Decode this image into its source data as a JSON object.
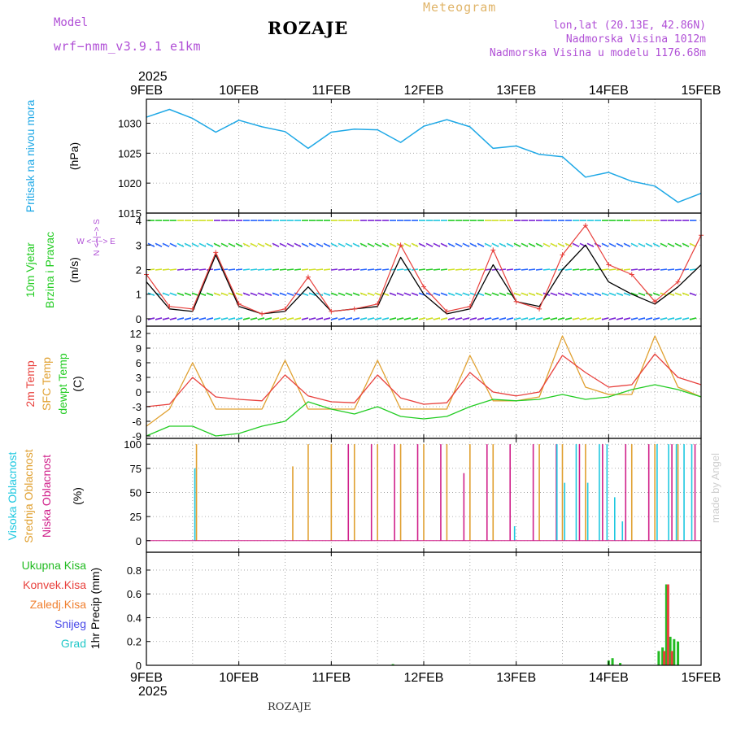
{
  "header": {
    "model_label": "Model",
    "model_name": "wrf−nmm_v3.9.1  e1km",
    "station": "ROZAJE",
    "product": "Meteogram",
    "coords": "lon,lat (20.13E, 42.86N)",
    "elevation": "Nadmorska Visina 1012m",
    "model_elevation": "Nadmorska Visina u modelu 1176.68m",
    "footer_station": "ROZAJE",
    "credit": "made by Angel"
  },
  "time_axis": {
    "year_top": "2025",
    "year_bottom": "2025",
    "ticks": [
      "9FEB",
      "10FEB",
      "11FEB",
      "12FEB",
      "13FEB",
      "14FEB",
      "15FEB"
    ]
  },
  "panels": {
    "pressure": {
      "label": "Pritisak na nivou mora",
      "unit": "(hPa)"
    },
    "wind": {
      "label1": "10m Vjetar",
      "label2": "Brzina i Pravac",
      "unit": "(m/s)",
      "compass": "W <−|−> E",
      "compass_n": "N <−|−> S"
    },
    "temp": {
      "label1": "2m Temp",
      "label2": "SFC Temp",
      "label3": "dewpt Temp",
      "unit": "(C)"
    },
    "cloud": {
      "label1": "Visoka Oblacnost",
      "label2": "Srednja Oblacnost",
      "label3": "Niska Oblacnost",
      "unit": "(%)"
    },
    "precip": {
      "labels": [
        "Ukupna Kisa",
        "Konvek.Kisa",
        "Zaledj.Kisa",
        "Snijeg",
        "Grad"
      ],
      "unit": "1hr Precip (mm)"
    }
  },
  "colors": {
    "pressure": "#1ea8e6",
    "wind_black": "#000000",
    "gust": "#e8403c",
    "t2m": "#e8403c",
    "sfc": "#e0a030",
    "dew": "#22cc22",
    "high": "#1ec8e0",
    "mid": "#e0a030",
    "low": "#d0208a",
    "total": "#22bb22",
    "conv": "#e8403c",
    "frz": "#f08030",
    "snow": "#4848e8",
    "hail": "#20c8c8"
  },
  "chart_data": [
    {
      "type": "line",
      "title": "Pritisak na nivou mora",
      "ylabel": "(hPa)",
      "ylim": [
        1015,
        1034
      ],
      "yticks": [
        1015,
        1020,
        1025,
        1030
      ],
      "x": [
        "2025-02-09T00",
        "2025-02-09T06",
        "2025-02-09T12",
        "2025-02-09T18",
        "2025-02-10T00",
        "2025-02-10T06",
        "2025-02-10T12",
        "2025-02-10T18",
        "2025-02-11T00",
        "2025-02-11T06",
        "2025-02-11T12",
        "2025-02-11T18",
        "2025-02-12T00",
        "2025-02-12T06",
        "2025-02-12T12",
        "2025-02-12T18",
        "2025-02-13T00",
        "2025-02-13T06",
        "2025-02-13T12",
        "2025-02-13T18",
        "2025-02-14T00",
        "2025-02-14T06",
        "2025-02-14T12",
        "2025-02-14T18",
        "2025-02-15T00"
      ],
      "series": [
        {
          "values": [
            1031.0,
            1032.3,
            1030.8,
            1028.5,
            1030.5,
            1029.4,
            1028.6,
            1025.8,
            1028.5,
            1029.0,
            1028.9,
            1026.8,
            1029.5,
            1030.6,
            1029.4,
            1025.8,
            1026.2,
            1024.8,
            1024.4,
            1021.0,
            1021.8,
            1020.3,
            1019.5,
            1016.8,
            1018.3
          ]
        }
      ]
    },
    {
      "type": "line",
      "title": "10m Vjetar Brzina i Pravac",
      "ylabel": "(m/s)",
      "ylim": [
        -0.3,
        4.3
      ],
      "yticks": [
        0,
        1,
        2,
        3,
        4
      ],
      "x": [
        "2025-02-09T00",
        "2025-02-09T06",
        "2025-02-09T12",
        "2025-02-09T18",
        "2025-02-10T00",
        "2025-02-10T06",
        "2025-02-10T12",
        "2025-02-10T18",
        "2025-02-11T00",
        "2025-02-11T06",
        "2025-02-11T12",
        "2025-02-11T18",
        "2025-02-12T00",
        "2025-02-12T06",
        "2025-02-12T12",
        "2025-02-12T18",
        "2025-02-13T00",
        "2025-02-13T06",
        "2025-02-13T12",
        "2025-02-13T18",
        "2025-02-14T00",
        "2025-02-14T06",
        "2025-02-14T12",
        "2025-02-14T18",
        "2025-02-15T00"
      ],
      "series": [
        {
          "values": [
            1.5,
            0.4,
            0.3,
            2.6,
            0.5,
            0.2,
            0.3,
            1.3,
            0.3,
            0.4,
            0.5,
            2.5,
            1.0,
            0.2,
            0.4,
            2.2,
            0.7,
            0.5,
            2.0,
            3.0,
            1.5,
            1.0,
            0.6,
            1.3,
            2.2
          ]
        },
        {
          "values": [
            1.8,
            0.5,
            0.4,
            2.7,
            0.6,
            0.2,
            0.4,
            1.7,
            0.3,
            0.4,
            0.6,
            3.0,
            1.3,
            0.3,
            0.5,
            2.8,
            0.7,
            0.4,
            2.6,
            3.8,
            2.2,
            1.8,
            0.7,
            1.5,
            3.4
          ]
        }
      ]
    },
    {
      "type": "line",
      "title": "2m Temp / SFC Temp / dewpt Temp",
      "ylabel": "(C)",
      "ylim": [
        -9.5,
        13.5
      ],
      "yticks": [
        -9,
        -6,
        -3,
        0,
        3,
        6,
        9,
        12
      ],
      "x": [
        "2025-02-09T00",
        "2025-02-09T06",
        "2025-02-09T12",
        "2025-02-09T18",
        "2025-02-10T00",
        "2025-02-10T06",
        "2025-02-10T12",
        "2025-02-10T18",
        "2025-02-11T00",
        "2025-02-11T06",
        "2025-02-11T12",
        "2025-02-11T18",
        "2025-02-12T00",
        "2025-02-12T06",
        "2025-02-12T12",
        "2025-02-12T18",
        "2025-02-13T00",
        "2025-02-13T06",
        "2025-02-13T12",
        "2025-02-13T18",
        "2025-02-14T00",
        "2025-02-14T06",
        "2025-02-14T12",
        "2025-02-14T18",
        "2025-02-15T00"
      ],
      "series": [
        {
          "values": [
            -3.0,
            -2.5,
            3.0,
            -1.0,
            -1.5,
            -1.8,
            3.5,
            -0.8,
            -2.0,
            -2.2,
            3.5,
            -1.2,
            -2.5,
            -2.2,
            4.0,
            0.0,
            -0.8,
            0.0,
            7.5,
            4.0,
            1.0,
            1.5,
            7.8,
            3.0,
            1.5
          ]
        },
        {
          "values": [
            -7.0,
            -3.5,
            6.0,
            -3.5,
            -3.5,
            -3.5,
            6.5,
            -3.5,
            -3.5,
            -3.5,
            6.5,
            -3.5,
            -3.5,
            -3.5,
            7.5,
            -1.8,
            -1.8,
            -1.0,
            11.5,
            1.0,
            -0.5,
            -0.5,
            11.5,
            1.0,
            -1.0
          ]
        },
        {
          "values": [
            -9.0,
            -7.0,
            -7.0,
            -9.0,
            -8.5,
            -7.0,
            -6.0,
            -2.0,
            -3.5,
            -4.5,
            -3.0,
            -5.0,
            -5.5,
            -5.0,
            -3.0,
            -1.5,
            -1.8,
            -1.5,
            -0.5,
            -1.5,
            -1.0,
            0.5,
            1.5,
            0.5,
            -1.0
          ]
        }
      ]
    },
    {
      "type": "bar",
      "title": "Visoka / Srednja / Niska Oblacnost",
      "ylabel": "(%)",
      "ylim": [
        0,
        100
      ],
      "yticks": [
        0,
        25,
        50,
        75,
        100
      ],
      "series": [
        {
          "name": "Visoka Oblacnost",
          "x": [
            "2025-02-09T13",
            "2025-02-13T00",
            "2025-02-13T11",
            "2025-02-13T13",
            "2025-02-13T16",
            "2025-02-13T19",
            "2025-02-13T22",
            "2025-02-14T00",
            "2025-02-14T02",
            "2025-02-14T04",
            "2025-02-14T13",
            "2025-02-14T16",
            "2025-02-14T18",
            "2025-02-14T20",
            "2025-02-14T22"
          ],
          "values": [
            75,
            15,
            100,
            60,
            100,
            60,
            100,
            100,
            45,
            20,
            100,
            100,
            100,
            100,
            100
          ]
        },
        {
          "name": "Srednja Oblacnost",
          "x": [
            "2025-02-09T13",
            "2025-02-10T14",
            "2025-02-10T18",
            "2025-02-11T00",
            "2025-02-11T06",
            "2025-02-11T12",
            "2025-02-11T18",
            "2025-02-12T00",
            "2025-02-12T06",
            "2025-02-12T12",
            "2025-02-12T18",
            "2025-02-13T06",
            "2025-02-13T12",
            "2025-02-13T18",
            "2025-02-14T06",
            "2025-02-14T12",
            "2025-02-14T18"
          ],
          "values": [
            100,
            77,
            100,
            100,
            100,
            100,
            100,
            100,
            100,
            100,
            100,
            100,
            100,
            100,
            100,
            100,
            100
          ]
        },
        {
          "name": "Niska Oblacnost",
          "x": [
            "2025-02-11T04",
            "2025-02-11T10",
            "2025-02-11T16",
            "2025-02-11T22",
            "2025-02-12T04",
            "2025-02-12T10",
            "2025-02-12T16",
            "2025-02-12T22",
            "2025-02-13T04",
            "2025-02-13T10",
            "2025-02-13T16",
            "2025-02-13T22",
            "2025-02-14T04",
            "2025-02-14T10",
            "2025-02-14T16",
            "2025-02-14T22"
          ],
          "values": [
            100,
            100,
            100,
            100,
            100,
            70,
            100,
            100,
            100,
            100,
            100,
            100,
            100,
            100,
            100,
            100
          ]
        }
      ]
    },
    {
      "type": "bar",
      "title": "1hr Precip",
      "ylabel": "1hr Precip (mm)",
      "ylim": [
        0,
        0.95
      ],
      "yticks": [
        0,
        0.2,
        0.4,
        0.6,
        0.8
      ],
      "series": [
        {
          "name": "Ukupna Kisa",
          "x": [
            "2025-02-11T16",
            "2025-02-14T00",
            "2025-02-14T01",
            "2025-02-14T03",
            "2025-02-14T13",
            "2025-02-14T14",
            "2025-02-14T15",
            "2025-02-14T16",
            "2025-02-14T17",
            "2025-02-14T18"
          ],
          "values": [
            0.01,
            0.04,
            0.06,
            0.02,
            0.12,
            0.15,
            0.68,
            0.24,
            0.22,
            0.2
          ]
        },
        {
          "name": "Konvek.Kisa",
          "x": [
            "2025-02-14T14",
            "2025-02-14T15",
            "2025-02-14T16"
          ],
          "values": [
            0.12,
            0.68,
            0.12
          ]
        }
      ]
    }
  ]
}
